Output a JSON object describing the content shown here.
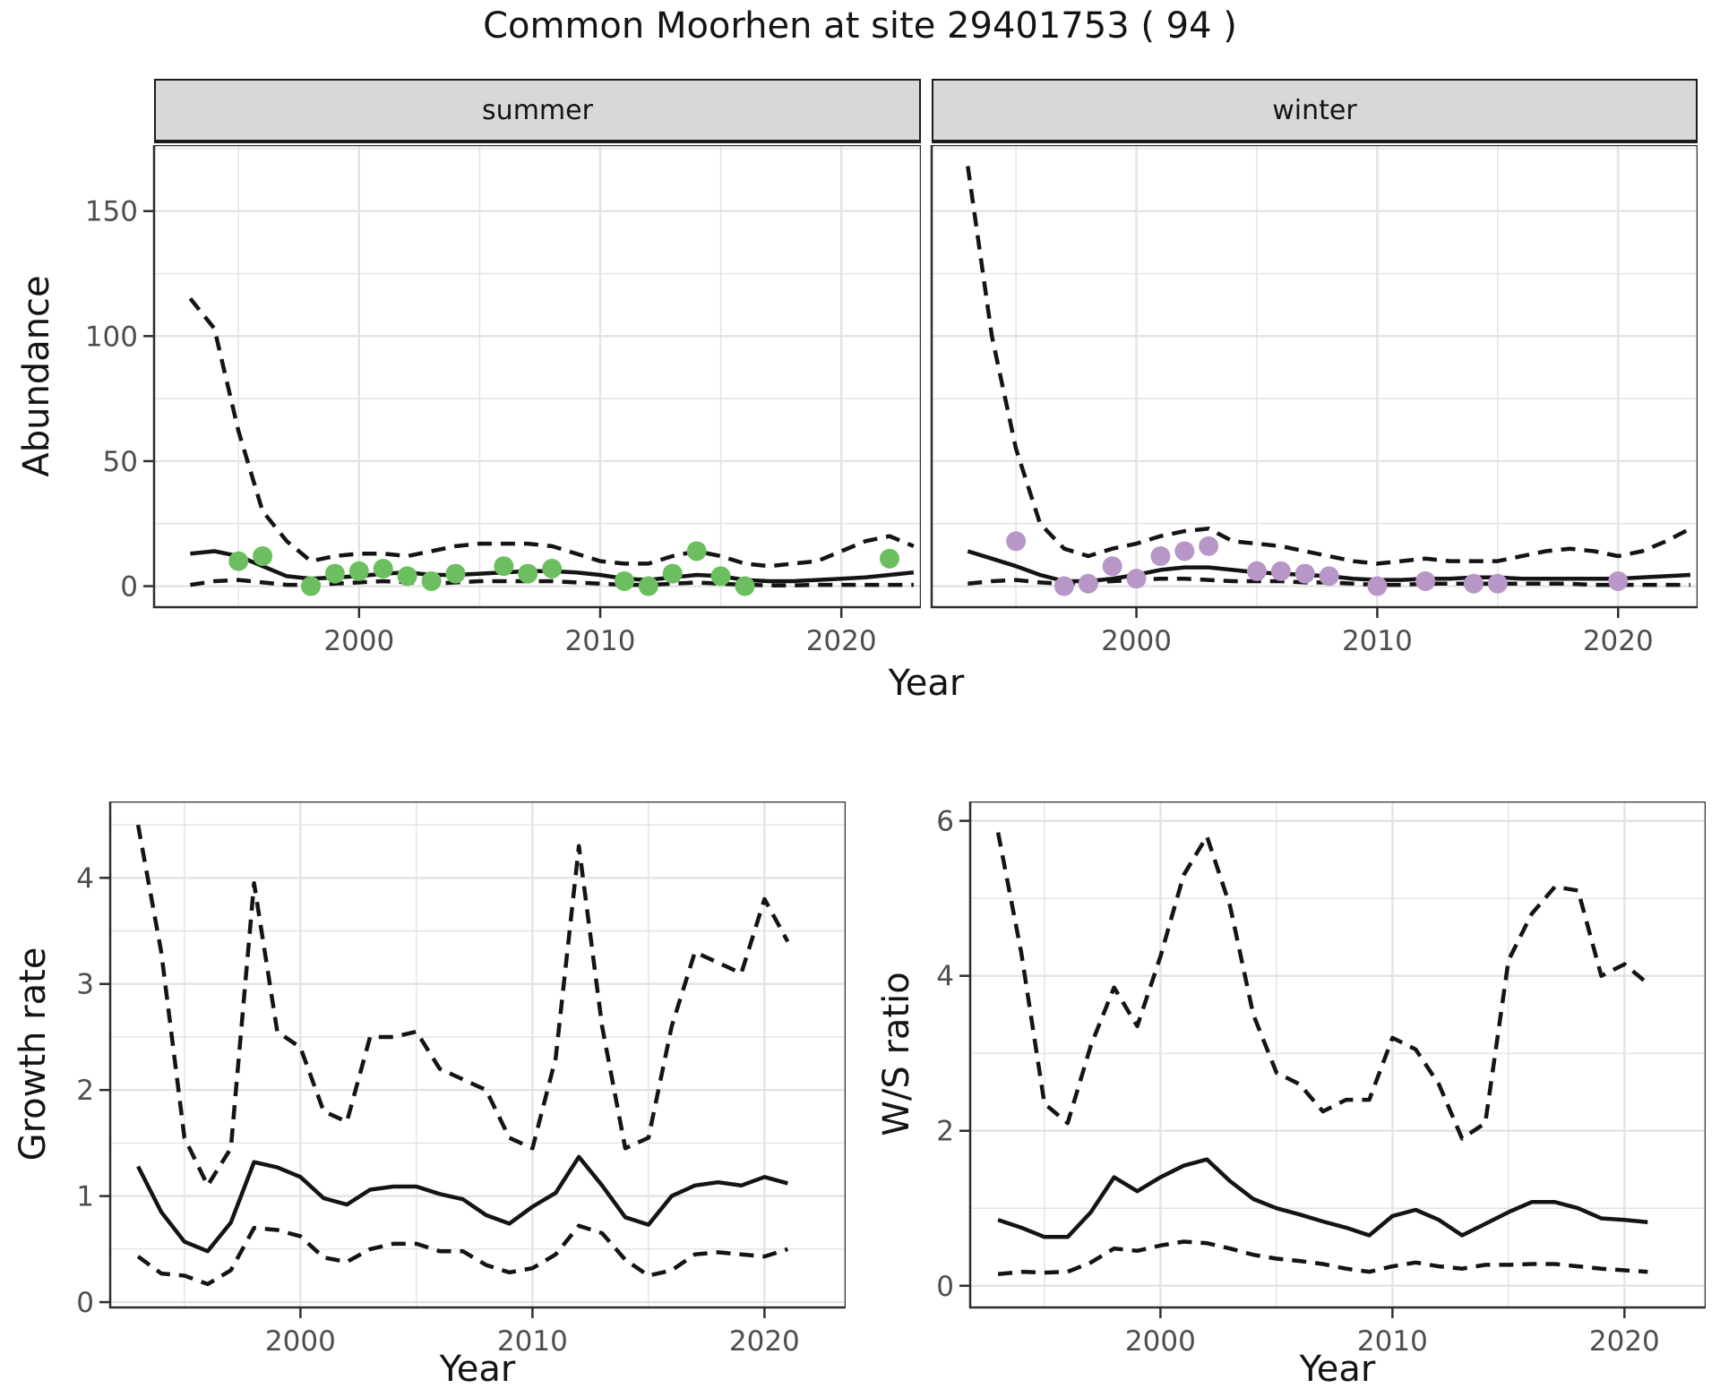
{
  "title": "Common Moorhen at site 29401753 ( 94 )",
  "top": {
    "ylabel": "Abundance",
    "xlabel": "Year",
    "facets": [
      "summer",
      "winter"
    ]
  },
  "bottom": {
    "xlabel": "Year"
  },
  "colors": {
    "summer_point": "#6cbf5f",
    "winter_point": "#b996c8",
    "line": "#141414",
    "grid": "#e3e3e3",
    "tick_text": "#4d4d4d",
    "panel_border": "#2e2e2e",
    "strip_bg": "#d8d8d8"
  },
  "chart_data": [
    {
      "id": "summer",
      "type": "line",
      "facet": "summer",
      "xlabel": "Year",
      "ylabel": "Abundance",
      "xlim": [
        1991.5,
        2023.3
      ],
      "ylim": [
        -8.4,
        176.4
      ],
      "x_ticks": [
        2000,
        2010,
        2020
      ],
      "x_minor": [
        1995,
        2005,
        2015
      ],
      "y_ticks": [
        0,
        50,
        100,
        150
      ],
      "y_minor": [
        25,
        75,
        125,
        175
      ],
      "grid": true,
      "legend": "none",
      "years": [
        1993,
        1994,
        1995,
        1996,
        1997,
        1998,
        1999,
        2000,
        2001,
        2002,
        2003,
        2004,
        2005,
        2006,
        2007,
        2008,
        2009,
        2010,
        2011,
        2012,
        2013,
        2014,
        2015,
        2016,
        2017,
        2018,
        2019,
        2020,
        2021,
        2022,
        2023
      ],
      "series": [
        {
          "name": "upper_ci",
          "style": "dashed",
          "values": [
            115,
            103,
            62,
            30,
            18,
            10,
            12,
            13,
            13,
            12,
            14,
            16,
            17,
            17,
            17,
            16,
            13,
            10,
            9,
            9,
            12,
            14,
            12,
            9,
            8,
            9,
            10,
            14,
            18,
            20,
            16
          ]
        },
        {
          "name": "median",
          "style": "solid",
          "values": [
            13,
            14,
            12,
            8,
            4,
            3,
            3.5,
            4,
            5,
            5.5,
            4.5,
            4.5,
            5,
            5.5,
            6,
            6,
            5.5,
            4.5,
            3,
            2.5,
            3.5,
            4.5,
            4,
            2.5,
            2,
            2,
            2.5,
            3,
            3.5,
            4.5,
            5.5
          ]
        },
        {
          "name": "lower_ci",
          "style": "dashed",
          "values": [
            0.5,
            2,
            2.5,
            1.5,
            0.5,
            0.5,
            1,
            1.5,
            2,
            1.5,
            1,
            1.5,
            2,
            2,
            2,
            2,
            1.5,
            1,
            0.5,
            0.5,
            1,
            1.5,
            1,
            0.5,
            0.3,
            0.3,
            0.5,
            0.5,
            0.5,
            0.5,
            0.5
          ]
        }
      ],
      "points": {
        "name": "observed_counts",
        "color": "#6cbf5f",
        "x": [
          1995,
          1996,
          1998,
          1999,
          2000,
          2001,
          2002,
          2003,
          2004,
          2006,
          2007,
          2008,
          2011,
          2012,
          2013,
          2014,
          2015,
          2016,
          2022
        ],
        "y": [
          10,
          12,
          0,
          5,
          6,
          7,
          4,
          2,
          5,
          8,
          5,
          7,
          2,
          0,
          5,
          14,
          4,
          0,
          11
        ]
      },
      "show_y_tick_labels": true
    },
    {
      "id": "winter",
      "type": "line",
      "facet": "winter",
      "xlabel": "Year",
      "ylabel": "Abundance",
      "xlim": [
        1991.5,
        2023.3
      ],
      "ylim": [
        -8.4,
        176.4
      ],
      "x_ticks": [
        2000,
        2010,
        2020
      ],
      "x_minor": [
        1995,
        2005,
        2015
      ],
      "y_ticks": [
        0,
        50,
        100,
        150
      ],
      "y_minor": [
        25,
        75,
        125,
        175
      ],
      "grid": true,
      "legend": "none",
      "years": [
        1993,
        1994,
        1995,
        1996,
        1997,
        1998,
        1999,
        2000,
        2001,
        2002,
        2003,
        2004,
        2005,
        2006,
        2007,
        2008,
        2009,
        2010,
        2011,
        2012,
        2013,
        2014,
        2015,
        2016,
        2017,
        2018,
        2019,
        2020,
        2021,
        2022,
        2023
      ],
      "series": [
        {
          "name": "upper_ci",
          "style": "dashed",
          "values": [
            168,
            100,
            55,
            25,
            15,
            12,
            15,
            17,
            20,
            22,
            23,
            18,
            17,
            16,
            14,
            12,
            10,
            9,
            10,
            11,
            10,
            10,
            10,
            12,
            14,
            15,
            14,
            12,
            14,
            18,
            23
          ]
        },
        {
          "name": "median",
          "style": "solid",
          "values": [
            14,
            11,
            8,
            4.5,
            2,
            2,
            3,
            4.5,
            6.5,
            7.5,
            7.5,
            6.5,
            5.5,
            5,
            4.5,
            4,
            3,
            2.5,
            2.5,
            3,
            3,
            3.5,
            3.5,
            3,
            3,
            3,
            3,
            3,
            3.5,
            4,
            4.5
          ]
        },
        {
          "name": "lower_ci",
          "style": "dashed",
          "values": [
            1,
            2,
            2.5,
            1.5,
            1,
            1.5,
            2,
            2.5,
            3,
            3,
            2.5,
            2,
            2,
            2,
            1.5,
            1.5,
            1,
            0.5,
            0.5,
            1,
            1,
            1,
            1,
            1,
            1,
            1,
            0.5,
            0.5,
            0.5,
            0.5,
            0.5
          ]
        }
      ],
      "points": {
        "name": "observed_counts",
        "color": "#b996c8",
        "x": [
          1995,
          1997,
          1998,
          1999,
          2000,
          2001,
          2002,
          2003,
          2005,
          2006,
          2007,
          2008,
          2010,
          2012,
          2014,
          2015,
          2020
        ],
        "y": [
          18,
          0,
          1,
          8,
          3,
          12,
          14,
          16,
          6,
          6,
          5,
          4,
          0,
          2,
          1,
          1,
          2
        ]
      },
      "show_y_tick_labels": false
    },
    {
      "id": "growth",
      "type": "line",
      "xlabel": "Year",
      "ylabel": "Growth rate",
      "xlim": [
        1991.8,
        2023.5
      ],
      "ylim": [
        -0.05,
        4.72
      ],
      "x_ticks": [
        2000,
        2010,
        2020
      ],
      "x_minor": [
        1995,
        2005,
        2015
      ],
      "y_ticks": [
        0,
        1,
        2,
        3,
        4
      ],
      "y_minor": [
        0.5,
        1.5,
        2.5,
        3.5,
        4.5
      ],
      "grid": true,
      "legend": "none",
      "years": [
        1993,
        1994,
        1995,
        1996,
        1997,
        1998,
        1999,
        2000,
        2001,
        2002,
        2003,
        2004,
        2005,
        2006,
        2007,
        2008,
        2009,
        2010,
        2011,
        2012,
        2013,
        2014,
        2015,
        2016,
        2017,
        2018,
        2019,
        2020,
        2021
      ],
      "series": [
        {
          "name": "upper_ci",
          "style": "dashed",
          "values": [
            4.5,
            3.3,
            1.55,
            1.1,
            1.45,
            3.95,
            2.55,
            2.4,
            1.8,
            1.7,
            2.5,
            2.5,
            2.55,
            2.2,
            2.1,
            2.0,
            1.55,
            1.45,
            2.3,
            4.3,
            2.6,
            1.45,
            1.55,
            2.6,
            3.3,
            3.2,
            3.1,
            3.8,
            3.4
          ]
        },
        {
          "name": "median",
          "style": "solid",
          "values": [
            1.28,
            0.85,
            0.57,
            0.48,
            0.75,
            1.32,
            1.27,
            1.18,
            0.98,
            0.92,
            1.06,
            1.09,
            1.09,
            1.02,
            0.97,
            0.82,
            0.74,
            0.9,
            1.03,
            1.37,
            1.1,
            0.8,
            0.73,
            1.0,
            1.1,
            1.13,
            1.1,
            1.18,
            1.12
          ]
        },
        {
          "name": "lower_ci",
          "style": "dashed",
          "values": [
            0.43,
            0.27,
            0.25,
            0.17,
            0.3,
            0.7,
            0.68,
            0.62,
            0.42,
            0.38,
            0.5,
            0.55,
            0.55,
            0.48,
            0.48,
            0.35,
            0.28,
            0.32,
            0.45,
            0.72,
            0.65,
            0.4,
            0.25,
            0.3,
            0.45,
            0.47,
            0.45,
            0.43,
            0.5
          ]
        }
      ],
      "show_y_tick_labels": true
    },
    {
      "id": "ws",
      "type": "line",
      "xlabel": "Year",
      "ylabel": "W/S ratio",
      "xlim": [
        1991.8,
        2023.5
      ],
      "ylim": [
        -0.28,
        6.25
      ],
      "x_ticks": [
        2000,
        2010,
        2020
      ],
      "x_minor": [
        1995,
        2005,
        2015
      ],
      "y_ticks": [
        0,
        2,
        4,
        6
      ],
      "y_minor": [
        1,
        3,
        5
      ],
      "grid": true,
      "legend": "none",
      "years": [
        1993,
        1994,
        1995,
        1996,
        1997,
        1998,
        1999,
        2000,
        2001,
        2002,
        2003,
        2004,
        2005,
        2006,
        2007,
        2008,
        2009,
        2010,
        2011,
        2012,
        2013,
        2014,
        2015,
        2016,
        2017,
        2018,
        2019,
        2020,
        2021
      ],
      "series": [
        {
          "name": "upper_ci",
          "style": "dashed",
          "values": [
            5.85,
            4.3,
            2.35,
            2.1,
            3.1,
            3.85,
            3.35,
            4.25,
            5.3,
            5.8,
            4.9,
            3.5,
            2.75,
            2.6,
            2.25,
            2.4,
            2.4,
            3.2,
            3.05,
            2.6,
            1.9,
            2.1,
            4.2,
            4.8,
            5.15,
            5.1,
            4.0,
            4.15,
            3.9
          ]
        },
        {
          "name": "median",
          "style": "solid",
          "values": [
            0.85,
            0.75,
            0.63,
            0.63,
            0.95,
            1.4,
            1.22,
            1.4,
            1.55,
            1.63,
            1.35,
            1.12,
            1.0,
            0.92,
            0.83,
            0.75,
            0.65,
            0.9,
            0.98,
            0.85,
            0.65,
            0.8,
            0.95,
            1.08,
            1.08,
            1.0,
            0.87,
            0.85,
            0.82
          ]
        },
        {
          "name": "lower_ci",
          "style": "dashed",
          "values": [
            0.15,
            0.18,
            0.17,
            0.18,
            0.3,
            0.48,
            0.45,
            0.52,
            0.57,
            0.55,
            0.48,
            0.4,
            0.35,
            0.32,
            0.28,
            0.22,
            0.18,
            0.25,
            0.3,
            0.25,
            0.22,
            0.27,
            0.27,
            0.28,
            0.28,
            0.25,
            0.22,
            0.2,
            0.18
          ]
        }
      ],
      "show_y_tick_labels": true
    }
  ]
}
